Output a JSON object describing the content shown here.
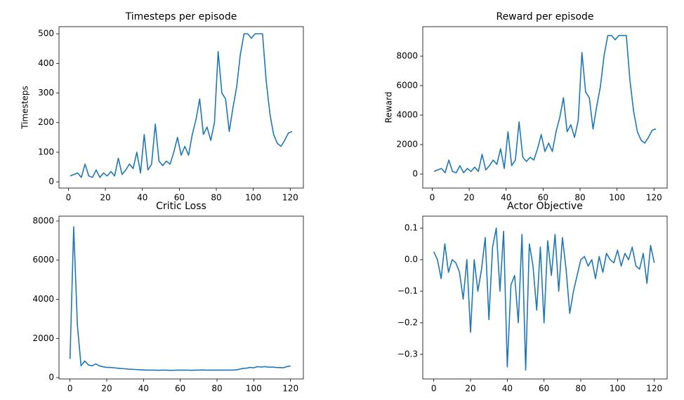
{
  "chart_data": [
    {
      "type": "line",
      "title": "Timesteps per episode",
      "y_label": "Timesteps",
      "color": "#1f77b4",
      "x": [
        1,
        3,
        5,
        7,
        9,
        11,
        13,
        15,
        17,
        19,
        21,
        23,
        25,
        27,
        29,
        31,
        33,
        35,
        37,
        39,
        41,
        43,
        45,
        47,
        49,
        51,
        53,
        55,
        57,
        59,
        61,
        63,
        65,
        67,
        69,
        71,
        73,
        75,
        77,
        79,
        81,
        83,
        85,
        87,
        89,
        91,
        93,
        95,
        97,
        99,
        101,
        103,
        105,
        107,
        109,
        111,
        113,
        115,
        117,
        119,
        121
      ],
      "values": [
        20,
        25,
        30,
        15,
        60,
        20,
        15,
        40,
        15,
        30,
        20,
        35,
        20,
        80,
        25,
        40,
        60,
        45,
        100,
        30,
        160,
        40,
        60,
        195,
        70,
        55,
        70,
        60,
        100,
        150,
        90,
        120,
        90,
        160,
        210,
        280,
        160,
        185,
        140,
        200,
        440,
        300,
        280,
        170,
        250,
        320,
        430,
        500,
        500,
        485,
        500,
        500,
        500,
        340,
        230,
        160,
        130,
        120,
        140,
        165,
        170
      ],
      "xlim": [
        -5.1,
        127.1
      ],
      "xticks": [
        0,
        20,
        40,
        60,
        80,
        100,
        120
      ],
      "ylim": [
        -21,
        524
      ],
      "yticks": [
        0,
        100,
        200,
        300,
        400,
        500
      ]
    },
    {
      "type": "line",
      "title": "Reward per episode",
      "y_label": "Reward",
      "color": "#1f77b4",
      "x": [
        1,
        3,
        5,
        7,
        9,
        11,
        13,
        15,
        17,
        19,
        21,
        23,
        25,
        27,
        29,
        31,
        33,
        35,
        37,
        39,
        41,
        43,
        45,
        47,
        49,
        51,
        53,
        55,
        57,
        59,
        61,
        63,
        65,
        67,
        69,
        71,
        73,
        75,
        77,
        79,
        81,
        83,
        85,
        87,
        89,
        91,
        93,
        95,
        97,
        99,
        101,
        103,
        105,
        107,
        109,
        111,
        113,
        115,
        117,
        119,
        121
      ],
      "values": [
        180,
        280,
        380,
        90,
        950,
        180,
        90,
        570,
        90,
        380,
        180,
        470,
        180,
        1340,
        280,
        570,
        950,
        660,
        1720,
        380,
        2870,
        570,
        950,
        3540,
        1140,
        860,
        1140,
        950,
        1720,
        2680,
        1530,
        2100,
        1530,
        2870,
        3830,
        5180,
        2870,
        3350,
        2490,
        3640,
        8250,
        5560,
        5180,
        3060,
        4600,
        5940,
        8060,
        9400,
        9400,
        9110,
        9400,
        9400,
        9400,
        6330,
        4220,
        2870,
        2300,
        2100,
        2490,
        2970,
        3060
      ],
      "xlim": [
        -5.1,
        127.1
      ],
      "xticks": [
        0,
        20,
        40,
        60,
        80,
        100,
        120
      ],
      "ylim": [
        -950,
        10000
      ],
      "yticks": [
        0,
        2000,
        4000,
        6000,
        8000
      ]
    },
    {
      "type": "line",
      "title": "Critic Loss",
      "color": "#1f77b4",
      "x": [
        0,
        2,
        4,
        6,
        8,
        10,
        12,
        14,
        16,
        18,
        20,
        22,
        24,
        26,
        28,
        30,
        32,
        34,
        36,
        38,
        40,
        42,
        44,
        46,
        48,
        50,
        52,
        54,
        56,
        58,
        60,
        62,
        64,
        66,
        68,
        70,
        72,
        74,
        76,
        78,
        80,
        82,
        84,
        86,
        88,
        90,
        92,
        94,
        96,
        98,
        100,
        102,
        104,
        106,
        108,
        110,
        112,
        114,
        116,
        118,
        120
      ],
      "values": [
        950,
        7700,
        2700,
        600,
        850,
        650,
        600,
        700,
        600,
        550,
        520,
        520,
        500,
        480,
        460,
        450,
        430,
        420,
        410,
        400,
        390,
        380,
        380,
        380,
        370,
        380,
        380,
        370,
        370,
        380,
        380,
        380,
        380,
        370,
        380,
        380,
        390,
        380,
        380,
        380,
        380,
        380,
        380,
        380,
        380,
        390,
        420,
        470,
        480,
        520,
        500,
        560,
        540,
        560,
        530,
        540,
        520,
        510,
        500,
        560,
        590
      ],
      "xlim": [
        -6,
        127
      ],
      "xticks": [
        0,
        20,
        40,
        60,
        80,
        100,
        120
      ],
      "ylim": [
        -70,
        8250
      ],
      "yticks": [
        0,
        2000,
        4000,
        6000,
        8000
      ]
    },
    {
      "type": "line",
      "title": "Actor Objective",
      "color": "#1f77b4",
      "x": [
        0,
        2,
        4,
        6,
        8,
        10,
        12,
        14,
        16,
        18,
        20,
        22,
        24,
        26,
        28,
        30,
        32,
        34,
        36,
        38,
        40,
        42,
        44,
        46,
        48,
        50,
        52,
        54,
        56,
        58,
        60,
        62,
        64,
        66,
        68,
        70,
        72,
        74,
        76,
        78,
        80,
        82,
        84,
        86,
        88,
        90,
        92,
        94,
        96,
        98,
        100,
        102,
        104,
        106,
        108,
        110,
        112,
        114,
        116,
        118,
        120
      ],
      "values": [
        0.025,
        0,
        -0.06,
        0.05,
        -0.04,
        0,
        -0.01,
        -0.04,
        -0.125,
        0,
        -0.23,
        0,
        -0.1,
        -0.03,
        0.07,
        -0.19,
        0.04,
        0.1,
        -0.1,
        0.09,
        -0.34,
        -0.08,
        -0.05,
        -0.2,
        0.08,
        -0.35,
        0.05,
        -0.02,
        -0.16,
        0.04,
        -0.2,
        0.06,
        -0.05,
        0.08,
        -0.1,
        0.07,
        -0.03,
        -0.17,
        -0.1,
        -0.05,
        0,
        0.01,
        -0.02,
        0,
        -0.06,
        0.01,
        -0.04,
        0.02,
        0,
        -0.01,
        0.03,
        -0.02,
        0.02,
        0,
        0.04,
        -0.02,
        -0.03,
        0.02,
        -0.075,
        0.045,
        -0.01
      ],
      "xlim": [
        -6,
        127
      ],
      "xticks": [
        0,
        20,
        40,
        60,
        80,
        100,
        120
      ],
      "ylim": [
        -0.378,
        0.138
      ],
      "yticks": [
        {
          "value": -0.3,
          "label": "−0.3"
        },
        {
          "value": -0.2,
          "label": "−0.2"
        },
        {
          "value": -0.1,
          "label": "−0.1"
        },
        {
          "value": 0,
          "label": "0.0"
        },
        0.1
      ]
    }
  ]
}
